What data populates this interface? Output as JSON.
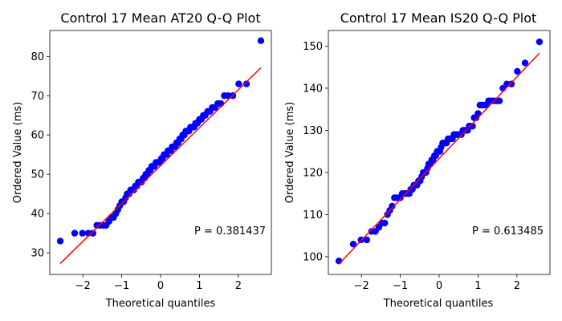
{
  "chart_data": [
    {
      "type": "scatter",
      "title": "Control 17 Mean AT20 Q-Q Plot",
      "xlabel": "Theoretical quantiles",
      "ylabel": "Ordered Value (ms)",
      "xlim": [
        -2.85,
        2.85
      ],
      "ylim": [
        24.5,
        86.6
      ],
      "xticks": [
        -2,
        -1,
        0,
        1,
        2
      ],
      "xtick_labels": [
        "−2",
        "−1",
        "0",
        "1",
        "2"
      ],
      "yticks": [
        30,
        40,
        50,
        60,
        70,
        80
      ],
      "ytick_labels": [
        "30",
        "40",
        "50",
        "60",
        "70",
        "80"
      ],
      "annotation": "P = 0.381437",
      "fit_line": {
        "slope": 9.65,
        "intercept": 52.2,
        "x_range": [
          -2.58,
          2.58
        ]
      },
      "point_color": "#0000ff",
      "line_color": "#ff0000",
      "series": [
        {
          "name": "Ordered values",
          "x": [
            -2.58,
            -2.21,
            -2.01,
            -1.86,
            -1.74,
            -1.64,
            -1.55,
            -1.47,
            -1.4,
            -1.33,
            -1.27,
            -1.21,
            -1.15,
            -1.1,
            -1.05,
            -1.0,
            -0.95,
            -0.9,
            -0.86,
            -0.81,
            -0.77,
            -0.73,
            -0.69,
            -0.65,
            -0.61,
            -0.57,
            -0.53,
            -0.49,
            -0.45,
            -0.41,
            -0.38,
            -0.34,
            -0.3,
            -0.27,
            -0.23,
            -0.19,
            -0.16,
            -0.12,
            -0.09,
            -0.05,
            -0.02,
            0.02,
            0.05,
            0.09,
            0.12,
            0.16,
            0.19,
            0.23,
            0.27,
            0.3,
            0.34,
            0.38,
            0.41,
            0.45,
            0.49,
            0.53,
            0.57,
            0.61,
            0.65,
            0.69,
            0.73,
            0.77,
            0.81,
            0.86,
            0.9,
            0.95,
            1.0,
            1.05,
            1.1,
            1.15,
            1.21,
            1.27,
            1.33,
            1.4,
            1.47,
            1.55,
            1.64,
            1.74,
            1.86,
            2.01,
            2.21,
            2.58
          ],
          "y": [
            33,
            35,
            35,
            35,
            35,
            37,
            37,
            37,
            37,
            38,
            39,
            39,
            40,
            41,
            42,
            43,
            43,
            44,
            45,
            45,
            46,
            46,
            46,
            47,
            47,
            48,
            48,
            48,
            49,
            49,
            50,
            50,
            51,
            51,
            52,
            52,
            52,
            53,
            53,
            53,
            53,
            54,
            54,
            55,
            55,
            55,
            56,
            56,
            56,
            57,
            57,
            57,
            58,
            58,
            59,
            59,
            60,
            60,
            61,
            61,
            61,
            62,
            62,
            62,
            63,
            63,
            64,
            64,
            65,
            65,
            66,
            66,
            67,
            67,
            68,
            68,
            70,
            70,
            70,
            73,
            73,
            84
          ]
        }
      ]
    },
    {
      "type": "scatter",
      "title": "Control 17 Mean IS20 Q-Q Plot",
      "xlabel": "Theoretical quantiles",
      "ylabel": "Ordered Value (ms)",
      "xlim": [
        -2.85,
        2.85
      ],
      "ylim": [
        95.8,
        153.7
      ],
      "xticks": [
        -2,
        -1,
        0,
        1,
        2
      ],
      "xtick_labels": [
        "−2",
        "−1",
        "0",
        "1",
        "2"
      ],
      "yticks": [
        100,
        110,
        120,
        130,
        140,
        150
      ],
      "ytick_labels": [
        "100",
        "110",
        "120",
        "130",
        "140",
        "150"
      ],
      "annotation": "P = 0.613485",
      "fit_line": {
        "slope": 9.7,
        "intercept": 123.3,
        "x_range": [
          -2.58,
          2.58
        ]
      },
      "point_color": "#0000ff",
      "line_color": "#ff0000",
      "series": [
        {
          "name": "Ordered values",
          "x": [
            -2.58,
            -2.21,
            -2.01,
            -1.86,
            -1.74,
            -1.64,
            -1.55,
            -1.47,
            -1.4,
            -1.33,
            -1.27,
            -1.21,
            -1.15,
            -1.1,
            -1.05,
            -1.0,
            -0.95,
            -0.9,
            -0.86,
            -0.81,
            -0.77,
            -0.73,
            -0.69,
            -0.65,
            -0.61,
            -0.57,
            -0.53,
            -0.49,
            -0.45,
            -0.41,
            -0.38,
            -0.34,
            -0.3,
            -0.27,
            -0.23,
            -0.19,
            -0.16,
            -0.12,
            -0.09,
            -0.05,
            -0.02,
            0.02,
            0.05,
            0.09,
            0.12,
            0.16,
            0.19,
            0.23,
            0.27,
            0.3,
            0.34,
            0.38,
            0.41,
            0.45,
            0.49,
            0.53,
            0.57,
            0.61,
            0.65,
            0.69,
            0.73,
            0.77,
            0.81,
            0.86,
            0.9,
            0.95,
            1.0,
            1.05,
            1.1,
            1.15,
            1.21,
            1.27,
            1.33,
            1.4,
            1.47,
            1.55,
            1.64,
            1.74,
            1.86,
            2.01,
            2.21,
            2.58
          ],
          "y": [
            99,
            103,
            104,
            104,
            106,
            106,
            107,
            108,
            108,
            110,
            111,
            112,
            114,
            114,
            114,
            114,
            115,
            115,
            115,
            115,
            115,
            116,
            116,
            117,
            117,
            117,
            118,
            118,
            119,
            120,
            120,
            120,
            121,
            122,
            122,
            123,
            123,
            124,
            124,
            125,
            125,
            125,
            126,
            127,
            127,
            127,
            127,
            128,
            128,
            128,
            128,
            129,
            129,
            129,
            129,
            129,
            129,
            130,
            130,
            130,
            130,
            131,
            131,
            131,
            133,
            133,
            134,
            136,
            136,
            136,
            136,
            137,
            137,
            137,
            137,
            137,
            140,
            141,
            141,
            144,
            146,
            151
          ]
        }
      ]
    }
  ]
}
